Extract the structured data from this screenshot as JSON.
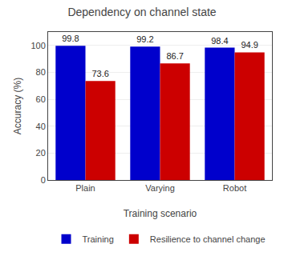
{
  "chart_data": {
    "type": "bar",
    "title": "Dependency on channel state",
    "xlabel": "Training scenario",
    "ylabel": "Accuracy (%)",
    "categories": [
      "Plain",
      "Varying",
      "Robot"
    ],
    "series": [
      {
        "name": "Training",
        "color": "#0000cc",
        "values": [
          99.8,
          99.2,
          98.4
        ]
      },
      {
        "name": "Resilience to channel change",
        "color": "#cc0000",
        "values": [
          73.6,
          86.7,
          94.9
        ]
      }
    ],
    "ylim": [
      0,
      110
    ],
    "yticks": [
      0,
      20,
      40,
      60,
      80,
      100
    ],
    "grid": true,
    "data_labels": true,
    "legend": "bottom"
  }
}
